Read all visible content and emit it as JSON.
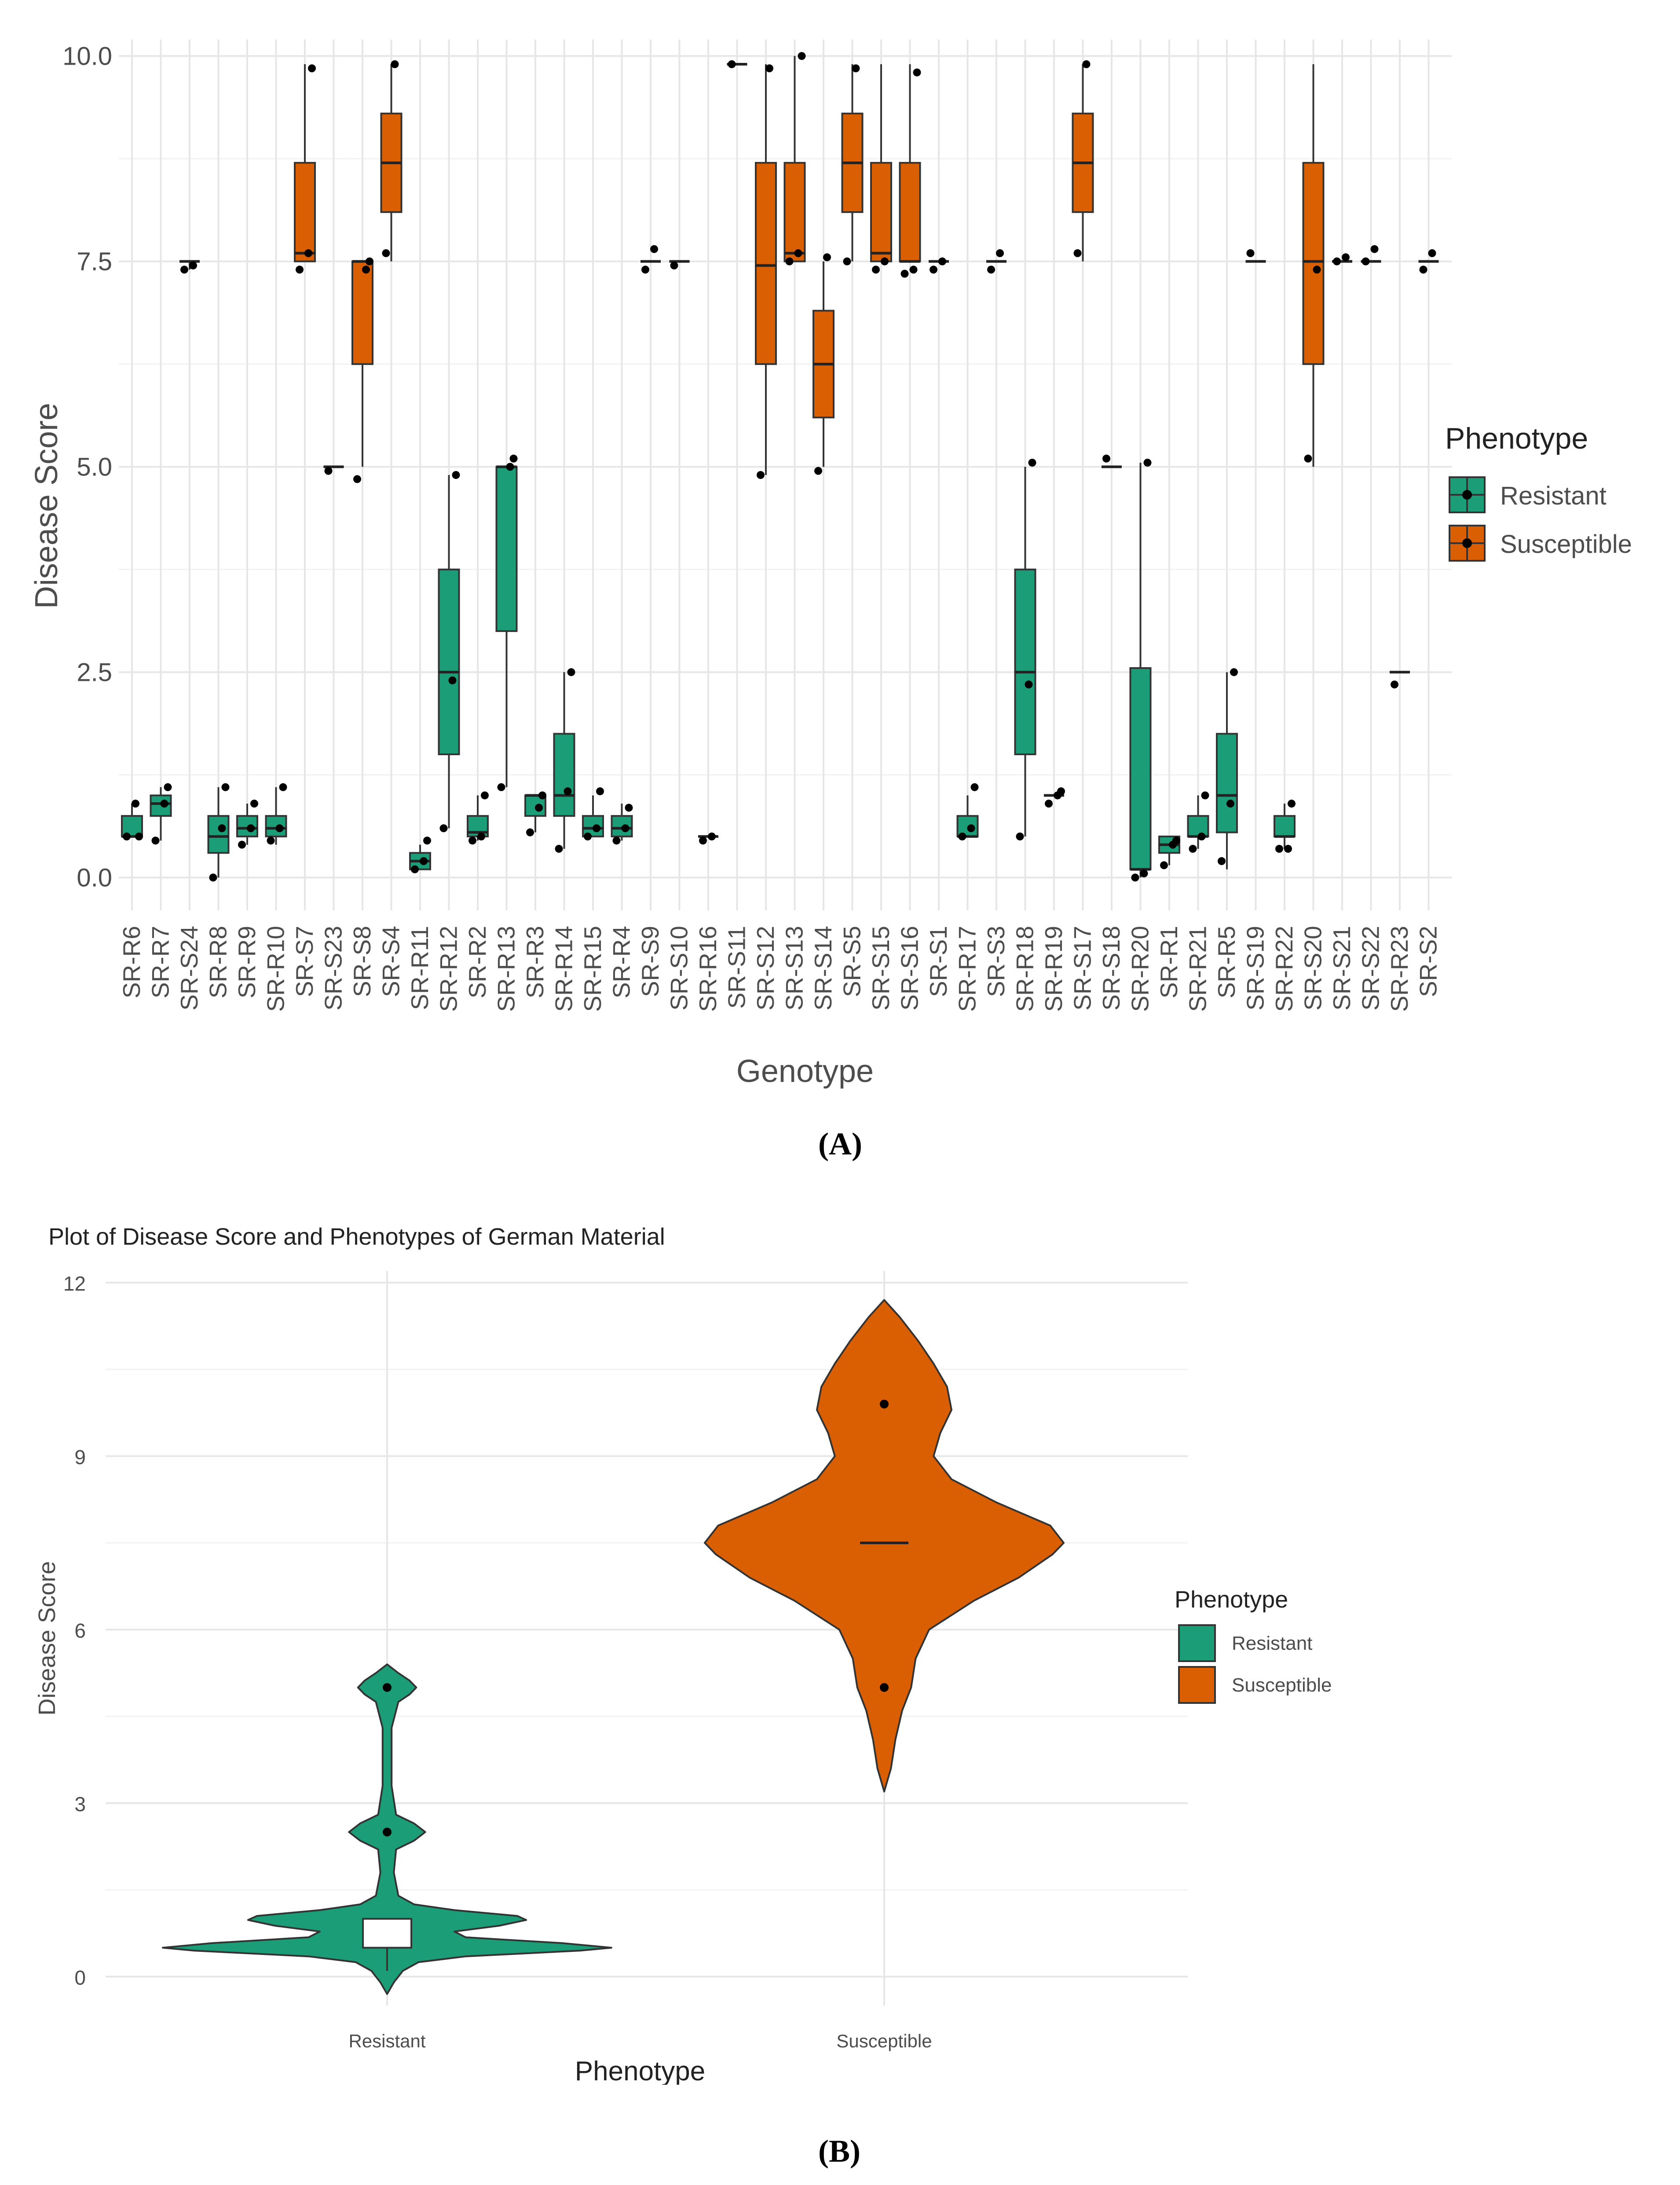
{
  "colors": {
    "Resistant": "#1b9e77",
    "Susceptible": "#d95f02",
    "grid_major": "#e6e6e6",
    "grid_minor": "#f2f2f2",
    "outline": "#333333",
    "text": "#4d4d4d"
  },
  "panels": {
    "a_caption": "(A)",
    "b_caption": "(B)"
  },
  "chart_data": [
    {
      "type": "box",
      "title": "",
      "xlabel": "Genotype",
      "ylabel": "Disease Score",
      "ylim": [
        -0.4,
        10.2
      ],
      "yticks": [
        0.0,
        2.5,
        5.0,
        7.5,
        10.0
      ],
      "ytick_labels": [
        "0.0",
        "2.5",
        "5.0",
        "7.5",
        "10.0"
      ],
      "legend": {
        "title": "Phenotype",
        "position": "right",
        "items": [
          "Resistant",
          "Susceptible"
        ]
      },
      "categories": [
        {
          "name": "SR-R6",
          "phenotype": "Resistant",
          "min": 0.5,
          "q1": 0.5,
          "median": 0.5,
          "q3": 0.75,
          "max": 0.9,
          "points": [
            0.5,
            0.9,
            0.5
          ]
        },
        {
          "name": "SR-R7",
          "phenotype": "Resistant",
          "min": 0.45,
          "q1": 0.75,
          "median": 0.9,
          "q3": 1.0,
          "max": 1.1,
          "points": [
            0.45,
            0.9,
            1.1
          ]
        },
        {
          "name": "SR-S24",
          "phenotype": "Susceptible",
          "min": 7.4,
          "q1": 7.5,
          "median": 7.5,
          "q3": 7.5,
          "max": 7.5,
          "points": [
            7.4,
            7.45
          ]
        },
        {
          "name": "SR-R8",
          "phenotype": "Resistant",
          "min": 0.0,
          "q1": 0.3,
          "median": 0.5,
          "q3": 0.75,
          "max": 1.1,
          "points": [
            0.0,
            0.6,
            1.1
          ]
        },
        {
          "name": "SR-R9",
          "phenotype": "Resistant",
          "min": 0.4,
          "q1": 0.5,
          "median": 0.6,
          "q3": 0.75,
          "max": 0.9,
          "points": [
            0.4,
            0.6,
            0.9
          ]
        },
        {
          "name": "SR-R10",
          "phenotype": "Resistant",
          "min": 0.4,
          "q1": 0.5,
          "median": 0.6,
          "q3": 0.75,
          "max": 1.1,
          "points": [
            0.45,
            0.6,
            1.1
          ]
        },
        {
          "name": "SR-S7",
          "phenotype": "Susceptible",
          "min": 7.5,
          "q1": 7.5,
          "median": 7.6,
          "q3": 8.7,
          "max": 9.9,
          "points": [
            7.4,
            7.6,
            9.85
          ]
        },
        {
          "name": "SR-S23",
          "phenotype": "Susceptible",
          "min": 5.0,
          "q1": 5.0,
          "median": 5.0,
          "q3": 5.0,
          "max": 5.0,
          "points": [
            4.95
          ]
        },
        {
          "name": "SR-S8",
          "phenotype": "Susceptible",
          "min": 5.0,
          "q1": 6.25,
          "median": 7.5,
          "q3": 7.5,
          "max": 7.5,
          "points": [
            4.85,
            7.4,
            7.5
          ]
        },
        {
          "name": "SR-S4",
          "phenotype": "Susceptible",
          "min": 7.5,
          "q1": 8.1,
          "median": 8.7,
          "q3": 9.3,
          "max": 9.9,
          "points": [
            7.6,
            9.9
          ]
        },
        {
          "name": "SR-R11",
          "phenotype": "Resistant",
          "min": 0.1,
          "q1": 0.1,
          "median": 0.2,
          "q3": 0.3,
          "max": 0.4,
          "points": [
            0.1,
            0.2,
            0.45
          ]
        },
        {
          "name": "SR-R12",
          "phenotype": "Resistant",
          "min": 0.6,
          "q1": 1.5,
          "median": 2.5,
          "q3": 3.75,
          "max": 4.9,
          "points": [
            0.6,
            2.4,
            4.9
          ]
        },
        {
          "name": "SR-R2",
          "phenotype": "Resistant",
          "min": 0.45,
          "q1": 0.5,
          "median": 0.55,
          "q3": 0.75,
          "max": 1.0,
          "points": [
            0.45,
            0.5,
            1.0
          ]
        },
        {
          "name": "SR-R13",
          "phenotype": "Resistant",
          "min": 1.1,
          "q1": 3.0,
          "median": 5.0,
          "q3": 5.0,
          "max": 5.0,
          "points": [
            1.1,
            5.0,
            5.1
          ]
        },
        {
          "name": "SR-R3",
          "phenotype": "Resistant",
          "min": 0.55,
          "q1": 0.75,
          "median": 1.0,
          "q3": 1.0,
          "max": 1.0,
          "points": [
            0.55,
            0.85,
            1.0
          ]
        },
        {
          "name": "SR-R14",
          "phenotype": "Resistant",
          "min": 0.35,
          "q1": 0.75,
          "median": 1.0,
          "q3": 1.75,
          "max": 2.5,
          "points": [
            0.35,
            1.05,
            2.5
          ]
        },
        {
          "name": "SR-R15",
          "phenotype": "Resistant",
          "min": 0.5,
          "q1": 0.5,
          "median": 0.6,
          "q3": 0.75,
          "max": 1.0,
          "points": [
            0.5,
            0.6,
            1.05
          ]
        },
        {
          "name": "SR-R4",
          "phenotype": "Resistant",
          "min": 0.45,
          "q1": 0.5,
          "median": 0.6,
          "q3": 0.75,
          "max": 0.9,
          "points": [
            0.45,
            0.6,
            0.85
          ]
        },
        {
          "name": "SR-S9",
          "phenotype": "Susceptible",
          "min": 7.5,
          "q1": 7.5,
          "median": 7.5,
          "q3": 7.5,
          "max": 7.5,
          "points": [
            7.4,
            7.65
          ]
        },
        {
          "name": "SR-S10",
          "phenotype": "Susceptible",
          "min": 7.5,
          "q1": 7.5,
          "median": 7.5,
          "q3": 7.5,
          "max": 7.5,
          "points": [
            7.45
          ]
        },
        {
          "name": "SR-R16",
          "phenotype": "Resistant",
          "min": 0.5,
          "q1": 0.5,
          "median": 0.5,
          "q3": 0.5,
          "max": 0.5,
          "points": [
            0.45,
            0.5
          ]
        },
        {
          "name": "SR-S11",
          "phenotype": "Susceptible",
          "min": 9.9,
          "q1": 9.9,
          "median": 9.9,
          "q3": 9.9,
          "max": 9.9,
          "points": [
            9.9
          ]
        },
        {
          "name": "SR-S12",
          "phenotype": "Susceptible",
          "min": 4.9,
          "q1": 6.25,
          "median": 7.45,
          "q3": 8.7,
          "max": 9.9,
          "points": [
            4.9,
            9.85
          ]
        },
        {
          "name": "SR-S13",
          "phenotype": "Susceptible",
          "min": 7.5,
          "q1": 7.5,
          "median": 7.6,
          "q3": 8.7,
          "max": 10.0,
          "points": [
            7.5,
            7.6,
            10.0
          ]
        },
        {
          "name": "SR-S14",
          "phenotype": "Susceptible",
          "min": 5.0,
          "q1": 5.6,
          "median": 6.25,
          "q3": 6.9,
          "max": 7.5,
          "points": [
            4.95,
            7.55
          ]
        },
        {
          "name": "SR-S5",
          "phenotype": "Susceptible",
          "min": 7.5,
          "q1": 8.1,
          "median": 8.7,
          "q3": 9.3,
          "max": 9.9,
          "points": [
            7.5,
            9.85
          ]
        },
        {
          "name": "SR-S15",
          "phenotype": "Susceptible",
          "min": 7.5,
          "q1": 7.5,
          "median": 7.6,
          "q3": 8.7,
          "max": 9.9,
          "points": [
            7.4,
            7.5
          ]
        },
        {
          "name": "SR-S16",
          "phenotype": "Susceptible",
          "min": 7.5,
          "q1": 7.5,
          "median": 7.5,
          "q3": 8.7,
          "max": 9.9,
          "points": [
            7.35,
            7.4,
            9.8
          ]
        },
        {
          "name": "SR-S1",
          "phenotype": "Susceptible",
          "min": 7.5,
          "q1": 7.5,
          "median": 7.5,
          "q3": 7.5,
          "max": 7.5,
          "points": [
            7.4,
            7.5
          ]
        },
        {
          "name": "SR-R17",
          "phenotype": "Resistant",
          "min": 0.5,
          "q1": 0.5,
          "median": 0.5,
          "q3": 0.75,
          "max": 1.0,
          "points": [
            0.5,
            0.6,
            1.1
          ]
        },
        {
          "name": "SR-S3",
          "phenotype": "Susceptible",
          "min": 7.5,
          "q1": 7.5,
          "median": 7.5,
          "q3": 7.5,
          "max": 7.5,
          "points": [
            7.4,
            7.6
          ]
        },
        {
          "name": "SR-R18",
          "phenotype": "Resistant",
          "min": 0.5,
          "q1": 1.5,
          "median": 2.5,
          "q3": 3.75,
          "max": 5.0,
          "points": [
            0.5,
            2.35,
            5.05
          ]
        },
        {
          "name": "SR-R19",
          "phenotype": "Resistant",
          "min": 1.0,
          "q1": 1.0,
          "median": 1.0,
          "q3": 1.0,
          "max": 1.0,
          "points": [
            0.9,
            1.0,
            1.05
          ]
        },
        {
          "name": "SR-S17",
          "phenotype": "Susceptible",
          "min": 7.5,
          "q1": 8.1,
          "median": 8.7,
          "q3": 9.3,
          "max": 9.9,
          "points": [
            7.6,
            9.9
          ]
        },
        {
          "name": "SR-S18",
          "phenotype": "Susceptible",
          "min": 5.0,
          "q1": 5.0,
          "median": 5.0,
          "q3": 5.0,
          "max": 5.0,
          "points": [
            5.1
          ]
        },
        {
          "name": "SR-R20",
          "phenotype": "Resistant",
          "min": 0.0,
          "q1": 0.1,
          "median": 0.1,
          "q3": 2.55,
          "max": 5.05,
          "points": [
            0.0,
            0.05,
            5.05
          ]
        },
        {
          "name": "SR-R1",
          "phenotype": "Resistant",
          "min": 0.15,
          "q1": 0.3,
          "median": 0.4,
          "q3": 0.5,
          "max": 0.5,
          "points": [
            0.15,
            0.4,
            0.45
          ]
        },
        {
          "name": "SR-R21",
          "phenotype": "Resistant",
          "min": 0.35,
          "q1": 0.5,
          "median": 0.5,
          "q3": 0.75,
          "max": 1.0,
          "points": [
            0.35,
            0.5,
            1.0
          ]
        },
        {
          "name": "SR-R5",
          "phenotype": "Resistant",
          "min": 0.1,
          "q1": 0.55,
          "median": 1.0,
          "q3": 1.75,
          "max": 2.5,
          "points": [
            0.2,
            0.9,
            2.5
          ]
        },
        {
          "name": "SR-S19",
          "phenotype": "Susceptible",
          "min": 7.5,
          "q1": 7.5,
          "median": 7.5,
          "q3": 7.5,
          "max": 7.5,
          "points": [
            7.6
          ]
        },
        {
          "name": "SR-R22",
          "phenotype": "Resistant",
          "min": 0.35,
          "q1": 0.5,
          "median": 0.5,
          "q3": 0.75,
          "max": 0.9,
          "points": [
            0.35,
            0.35,
            0.9
          ]
        },
        {
          "name": "SR-S20",
          "phenotype": "Susceptible",
          "min": 5.0,
          "q1": 6.25,
          "median": 7.5,
          "q3": 8.7,
          "max": 9.9,
          "points": [
            5.1,
            7.4
          ]
        },
        {
          "name": "SR-S21",
          "phenotype": "Susceptible",
          "min": 7.5,
          "q1": 7.5,
          "median": 7.5,
          "q3": 7.5,
          "max": 7.5,
          "points": [
            7.5,
            7.55
          ]
        },
        {
          "name": "SR-S22",
          "phenotype": "Susceptible",
          "min": 7.5,
          "q1": 7.5,
          "median": 7.5,
          "q3": 7.5,
          "max": 7.5,
          "points": [
            7.5,
            7.65
          ]
        },
        {
          "name": "SR-R23",
          "phenotype": "Resistant",
          "min": 2.5,
          "q1": 2.5,
          "median": 2.5,
          "q3": 2.5,
          "max": 2.5,
          "points": [
            2.35
          ]
        },
        {
          "name": "SR-S2",
          "phenotype": "Susceptible",
          "min": 7.5,
          "q1": 7.5,
          "median": 7.5,
          "q3": 7.5,
          "max": 7.5,
          "points": [
            7.4,
            7.6
          ]
        }
      ]
    },
    {
      "type": "violin",
      "title": "Plot of Disease Score and Phenotypes of German Material",
      "xlabel": "Phenotype",
      "ylabel": "Disease Score",
      "ylim": [
        -0.5,
        12.2
      ],
      "yticks": [
        0,
        3,
        6,
        9,
        12
      ],
      "ytick_labels": [
        "0",
        "3",
        "6",
        "9",
        "12"
      ],
      "legend": {
        "title": "Phenotype",
        "position": "right",
        "items": [
          "Resistant",
          "Susceptible"
        ]
      },
      "categories": [
        "Resistant",
        "Susceptible"
      ],
      "series": [
        {
          "name": "Resistant",
          "median_box": {
            "q1": 0.5,
            "q3": 1.0,
            "whisker_low": 0.1
          },
          "points": [
            5.0,
            2.5
          ],
          "density": [
            [
              -0.3,
              0.0
            ],
            [
              -0.1,
              0.03
            ],
            [
              0.1,
              0.07
            ],
            [
              0.25,
              0.14
            ],
            [
              0.35,
              0.35
            ],
            [
              0.45,
              0.86
            ],
            [
              0.5,
              1.0
            ],
            [
              0.58,
              0.78
            ],
            [
              0.68,
              0.35
            ],
            [
              0.78,
              0.3
            ],
            [
              0.88,
              0.5
            ],
            [
              0.98,
              0.62
            ],
            [
              1.05,
              0.58
            ],
            [
              1.15,
              0.3
            ],
            [
              1.25,
              0.12
            ],
            [
              1.4,
              0.05
            ],
            [
              1.8,
              0.03
            ],
            [
              2.2,
              0.04
            ],
            [
              2.35,
              0.12
            ],
            [
              2.5,
              0.17
            ],
            [
              2.65,
              0.12
            ],
            [
              2.8,
              0.04
            ],
            [
              3.3,
              0.02
            ],
            [
              4.3,
              0.02
            ],
            [
              4.75,
              0.05
            ],
            [
              4.88,
              0.1
            ],
            [
              5.0,
              0.13
            ],
            [
              5.12,
              0.1
            ],
            [
              5.25,
              0.05
            ],
            [
              5.4,
              0.0
            ]
          ]
        },
        {
          "name": "Susceptible",
          "median": 7.5,
          "points": [
            9.9,
            5.0
          ],
          "density": [
            [
              3.2,
              0.0
            ],
            [
              3.6,
              0.03
            ],
            [
              4.1,
              0.05
            ],
            [
              4.6,
              0.08
            ],
            [
              5.0,
              0.12
            ],
            [
              5.5,
              0.14
            ],
            [
              6.0,
              0.2
            ],
            [
              6.5,
              0.4
            ],
            [
              6.9,
              0.6
            ],
            [
              7.3,
              0.75
            ],
            [
              7.5,
              0.8
            ],
            [
              7.8,
              0.74
            ],
            [
              8.2,
              0.5
            ],
            [
              8.6,
              0.3
            ],
            [
              9.0,
              0.22
            ],
            [
              9.4,
              0.25
            ],
            [
              9.8,
              0.3
            ],
            [
              10.2,
              0.28
            ],
            [
              10.6,
              0.22
            ],
            [
              11.0,
              0.15
            ],
            [
              11.4,
              0.07
            ],
            [
              11.7,
              0.0
            ]
          ]
        }
      ]
    }
  ]
}
